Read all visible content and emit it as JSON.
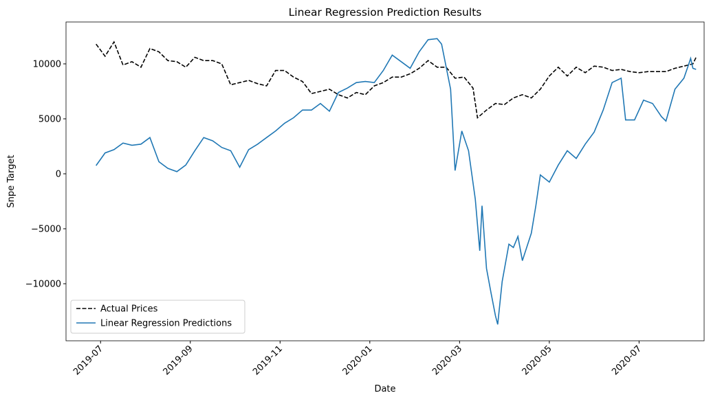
{
  "chart_data": {
    "type": "line",
    "title": "Linear Regression Prediction Results",
    "x_label": "Date",
    "y_label": "Snpe Target",
    "xlim": [
      -0.77,
      13.45
    ],
    "ylim": [
      -15190,
      13810
    ],
    "xticks": [
      {
        "value": 0,
        "label": "2019-07"
      },
      {
        "value": 2,
        "label": "2019-09"
      },
      {
        "value": 4,
        "label": "2019-11"
      },
      {
        "value": 6,
        "label": "2020-01"
      },
      {
        "value": 8,
        "label": "2020-03"
      },
      {
        "value": 10,
        "label": "2020-05"
      },
      {
        "value": 12,
        "label": "2020-07"
      }
    ],
    "yticks": [
      {
        "value": -10000,
        "label": "−10000"
      },
      {
        "value": -5000,
        "label": "−5000"
      },
      0,
      5000,
      10000
    ],
    "legend": "lower left",
    "series": [
      {
        "name": "Actual Prices",
        "color": "#000000",
        "dashed": true,
        "x": [
          -0.1,
          0.1,
          0.3,
          0.5,
          0.7,
          0.9,
          1.1,
          1.3,
          1.5,
          1.7,
          1.9,
          2.1,
          2.3,
          2.5,
          2.7,
          2.9,
          3.1,
          3.3,
          3.5,
          3.7,
          3.9,
          4.1,
          4.3,
          4.5,
          4.7,
          4.9,
          5.1,
          5.3,
          5.5,
          5.7,
          5.9,
          6.1,
          6.3,
          6.5,
          6.7,
          6.9,
          7.1,
          7.3,
          7.5,
          7.7,
          7.9,
          8.1,
          8.3,
          8.4,
          8.6,
          8.8,
          9.0,
          9.2,
          9.4,
          9.6,
          9.8,
          10.0,
          10.2,
          10.4,
          10.6,
          10.8,
          11.0,
          11.2,
          11.4,
          11.6,
          11.8,
          12.0,
          12.2,
          12.4,
          12.6,
          12.8,
          13.0,
          13.2,
          13.27
        ],
        "values": [
          11800,
          10700,
          12000,
          9900,
          10200,
          9700,
          11400,
          11100,
          10300,
          10200,
          9700,
          10600,
          10300,
          10300,
          10000,
          8100,
          8300,
          8500,
          8200,
          8000,
          9400,
          9400,
          8800,
          8400,
          7300,
          7500,
          7700,
          7200,
          6900,
          7400,
          7200,
          8000,
          8300,
          8800,
          8800,
          9100,
          9600,
          10300,
          9700,
          9700,
          8700,
          8800,
          7800,
          5100,
          5800,
          6400,
          6300,
          6900,
          7200,
          6900,
          7700,
          8900,
          9700,
          8900,
          9700,
          9200,
          9800,
          9700,
          9400,
          9500,
          9300,
          9200,
          9300,
          9300,
          9300,
          9600,
          9800,
          10000,
          10600
        ]
      },
      {
        "name": "Linear Regression Predictions",
        "color": "#1f77b4",
        "dashed": false,
        "x": [
          -0.1,
          0.1,
          0.3,
          0.5,
          0.7,
          0.9,
          1.1,
          1.3,
          1.5,
          1.7,
          1.9,
          2.1,
          2.3,
          2.5,
          2.7,
          2.9,
          3.1,
          3.3,
          3.5,
          3.7,
          3.9,
          4.1,
          4.3,
          4.5,
          4.7,
          4.9,
          5.1,
          5.3,
          5.5,
          5.7,
          5.9,
          6.1,
          6.3,
          6.5,
          6.7,
          6.9,
          7.1,
          7.3,
          7.5,
          7.6,
          7.8,
          7.9,
          8.05,
          8.2,
          8.35,
          8.45,
          8.5,
          8.6,
          8.7,
          8.8,
          8.85,
          8.95,
          9.1,
          9.2,
          9.3,
          9.4,
          9.6,
          9.7,
          9.8,
          10.0,
          10.2,
          10.4,
          10.6,
          10.8,
          11.0,
          11.2,
          11.4,
          11.6,
          11.7,
          11.9,
          12.1,
          12.3,
          12.5,
          12.6,
          12.8,
          13.0,
          13.1,
          13.15,
          13.2,
          13.27
        ],
        "values": [
          750,
          1900,
          2200,
          2800,
          2600,
          2700,
          3300,
          1100,
          500,
          200,
          800,
          2100,
          3300,
          3000,
          2400,
          2100,
          600,
          2200,
          2700,
          3300,
          3900,
          4600,
          5100,
          5800,
          5800,
          6400,
          5700,
          7400,
          7800,
          8300,
          8400,
          8300,
          9400,
          10800,
          10200,
          9600,
          11100,
          12200,
          12300,
          11800,
          7700,
          300,
          3900,
          2100,
          -2300,
          -7000,
          -2900,
          -8600,
          -10800,
          -12900,
          -13700,
          -9800,
          -6400,
          -6700,
          -5700,
          -7900,
          -5400,
          -2900,
          -100,
          -750,
          800,
          2100,
          1400,
          2700,
          3800,
          5800,
          8300,
          8700,
          4900,
          4900,
          6700,
          6400,
          5200,
          4800,
          7700,
          8700,
          9900,
          10500,
          9600,
          9500
        ]
      }
    ]
  }
}
